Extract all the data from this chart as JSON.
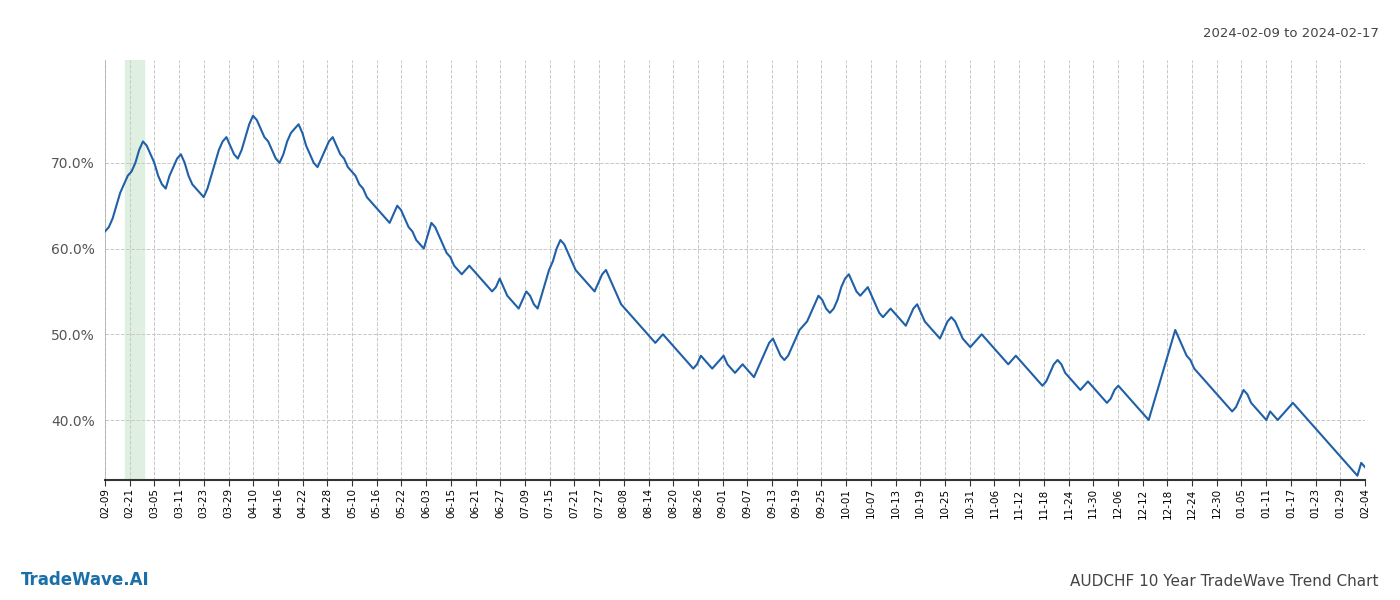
{
  "title_top_right": "2024-02-09 to 2024-02-17",
  "title_bottom_left": "TradeWave.AI",
  "title_bottom_right": "AUDCHF 10 Year TradeWave Trend Chart",
  "line_color": "#2060a8",
  "line_width": 1.5,
  "background_color": "#ffffff",
  "grid_color": "#c8c8c8",
  "shaded_region_color": "#dff0e0",
  "shaded_xstart": 0.016,
  "shaded_xend": 0.031,
  "ylim": [
    33,
    82
  ],
  "yticks": [
    40,
    50,
    60,
    70
  ],
  "x_tick_labels": [
    "02-09",
    "02-21",
    "03-05",
    "03-11",
    "03-23",
    "03-29",
    "04-10",
    "04-16",
    "04-22",
    "04-28",
    "05-10",
    "05-16",
    "05-22",
    "06-03",
    "06-15",
    "06-21",
    "06-27",
    "07-09",
    "07-15",
    "07-21",
    "07-27",
    "08-08",
    "08-14",
    "08-20",
    "08-26",
    "09-01",
    "09-07",
    "09-13",
    "09-19",
    "09-25",
    "10-01",
    "10-07",
    "10-13",
    "10-19",
    "10-25",
    "10-31",
    "11-06",
    "11-12",
    "11-18",
    "11-24",
    "11-30",
    "12-06",
    "12-12",
    "12-18",
    "12-24",
    "12-30",
    "01-05",
    "01-11",
    "01-17",
    "01-23",
    "01-29",
    "02-04"
  ],
  "y_values": [
    62.0,
    62.5,
    63.5,
    65.0,
    66.5,
    67.5,
    68.5,
    69.0,
    70.0,
    71.5,
    72.5,
    72.0,
    71.0,
    70.0,
    68.5,
    67.5,
    67.0,
    68.5,
    69.5,
    70.5,
    71.0,
    70.0,
    68.5,
    67.5,
    67.0,
    66.5,
    66.0,
    67.0,
    68.5,
    70.0,
    71.5,
    72.5,
    73.0,
    72.0,
    71.0,
    70.5,
    71.5,
    73.0,
    74.5,
    75.5,
    75.0,
    74.0,
    73.0,
    72.5,
    71.5,
    70.5,
    70.0,
    71.0,
    72.5,
    73.5,
    74.0,
    74.5,
    73.5,
    72.0,
    71.0,
    70.0,
    69.5,
    70.5,
    71.5,
    72.5,
    73.0,
    72.0,
    71.0,
    70.5,
    69.5,
    69.0,
    68.5,
    67.5,
    67.0,
    66.0,
    65.5,
    65.0,
    64.5,
    64.0,
    63.5,
    63.0,
    64.0,
    65.0,
    64.5,
    63.5,
    62.5,
    62.0,
    61.0,
    60.5,
    60.0,
    61.5,
    63.0,
    62.5,
    61.5,
    60.5,
    59.5,
    59.0,
    58.0,
    57.5,
    57.0,
    57.5,
    58.0,
    57.5,
    57.0,
    56.5,
    56.0,
    55.5,
    55.0,
    55.5,
    56.5,
    55.5,
    54.5,
    54.0,
    53.5,
    53.0,
    54.0,
    55.0,
    54.5,
    53.5,
    53.0,
    54.5,
    56.0,
    57.5,
    58.5,
    60.0,
    61.0,
    60.5,
    59.5,
    58.5,
    57.5,
    57.0,
    56.5,
    56.0,
    55.5,
    55.0,
    56.0,
    57.0,
    57.5,
    56.5,
    55.5,
    54.5,
    53.5,
    53.0,
    52.5,
    52.0,
    51.5,
    51.0,
    50.5,
    50.0,
    49.5,
    49.0,
    49.5,
    50.0,
    49.5,
    49.0,
    48.5,
    48.0,
    47.5,
    47.0,
    46.5,
    46.0,
    46.5,
    47.5,
    47.0,
    46.5,
    46.0,
    46.5,
    47.0,
    47.5,
    46.5,
    46.0,
    45.5,
    46.0,
    46.5,
    46.0,
    45.5,
    45.0,
    46.0,
    47.0,
    48.0,
    49.0,
    49.5,
    48.5,
    47.5,
    47.0,
    47.5,
    48.5,
    49.5,
    50.5,
    51.0,
    51.5,
    52.5,
    53.5,
    54.5,
    54.0,
    53.0,
    52.5,
    53.0,
    54.0,
    55.5,
    56.5,
    57.0,
    56.0,
    55.0,
    54.5,
    55.0,
    55.5,
    54.5,
    53.5,
    52.5,
    52.0,
    52.5,
    53.0,
    52.5,
    52.0,
    51.5,
    51.0,
    52.0,
    53.0,
    53.5,
    52.5,
    51.5,
    51.0,
    50.5,
    50.0,
    49.5,
    50.5,
    51.5,
    52.0,
    51.5,
    50.5,
    49.5,
    49.0,
    48.5,
    49.0,
    49.5,
    50.0,
    49.5,
    49.0,
    48.5,
    48.0,
    47.5,
    47.0,
    46.5,
    47.0,
    47.5,
    47.0,
    46.5,
    46.0,
    45.5,
    45.0,
    44.5,
    44.0,
    44.5,
    45.5,
    46.5,
    47.0,
    46.5,
    45.5,
    45.0,
    44.5,
    44.0,
    43.5,
    44.0,
    44.5,
    44.0,
    43.5,
    43.0,
    42.5,
    42.0,
    42.5,
    43.5,
    44.0,
    43.5,
    43.0,
    42.5,
    42.0,
    41.5,
    41.0,
    40.5,
    40.0,
    41.5,
    43.0,
    44.5,
    46.0,
    47.5,
    49.0,
    50.5,
    49.5,
    48.5,
    47.5,
    47.0,
    46.0,
    45.5,
    45.0,
    44.5,
    44.0,
    43.5,
    43.0,
    42.5,
    42.0,
    41.5,
    41.0,
    41.5,
    42.5,
    43.5,
    43.0,
    42.0,
    41.5,
    41.0,
    40.5,
    40.0,
    41.0,
    40.5,
    40.0,
    40.5,
    41.0,
    41.5,
    42.0,
    41.5,
    41.0,
    40.5,
    40.0,
    39.5,
    39.0,
    38.5,
    38.0,
    37.5,
    37.0,
    36.5,
    36.0,
    35.5,
    35.0,
    34.5,
    34.0,
    33.5,
    35.0,
    34.5
  ]
}
